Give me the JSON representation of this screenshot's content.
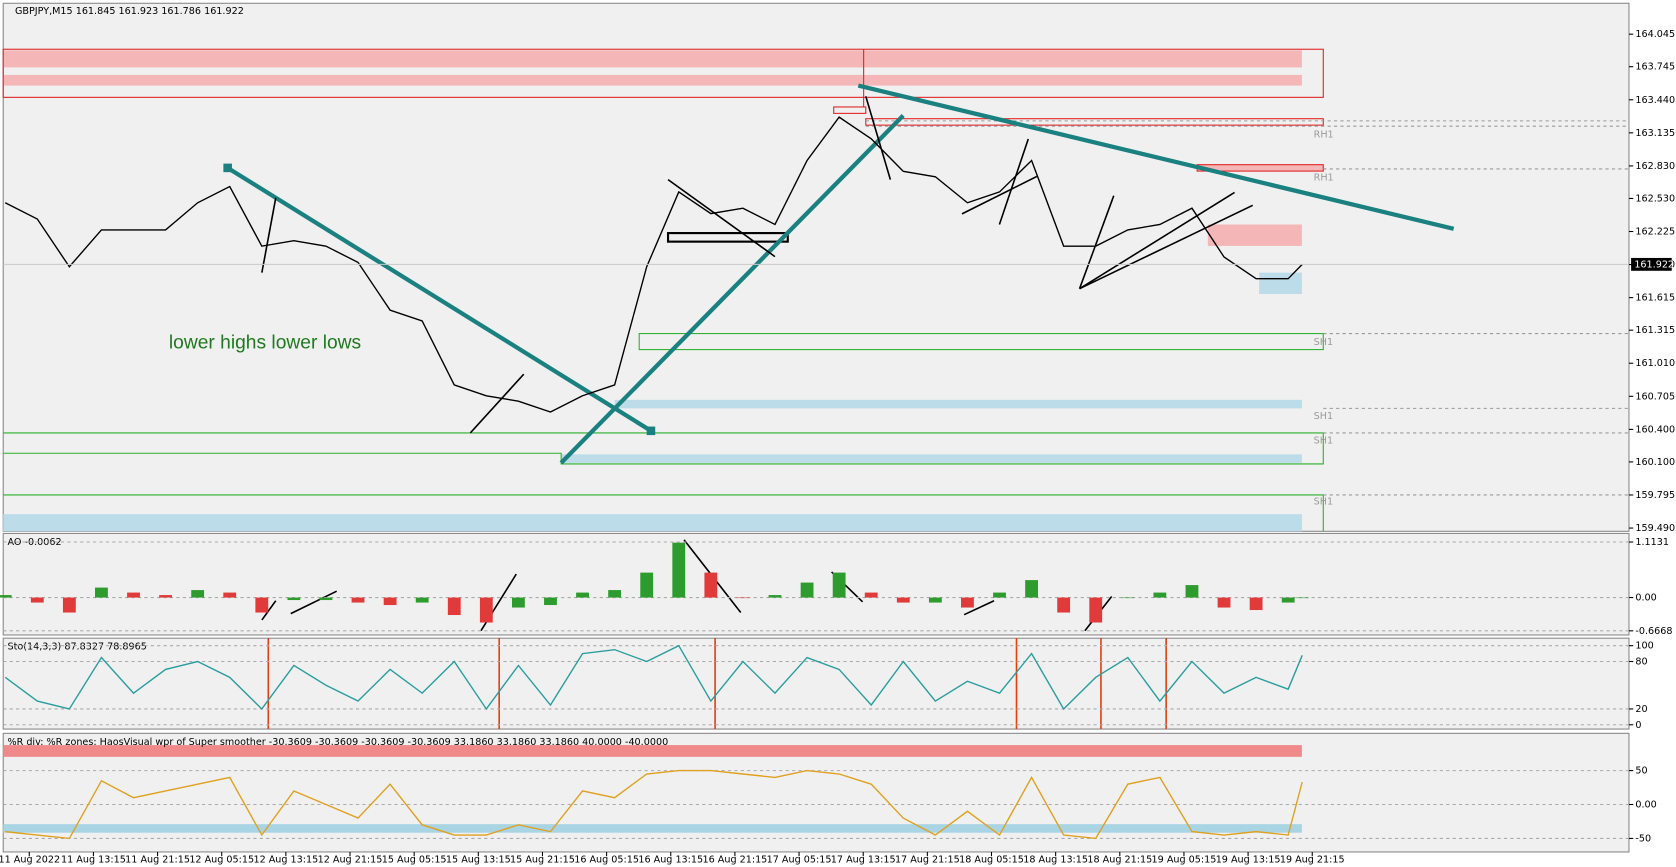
{
  "chart_data": [
    {
      "type": "line",
      "title": "GBPJPY,M15  161.845 161.923 161.786 161.922",
      "color": "#000000",
      "x": [
        1,
        17,
        33,
        49,
        65,
        81,
        97,
        113,
        129,
        145,
        161,
        177,
        193,
        209,
        225,
        241,
        257,
        273,
        289,
        305,
        321,
        337,
        353,
        369,
        385,
        401,
        417,
        433,
        449,
        465,
        481,
        497,
        513,
        529,
        545,
        561,
        577,
        593,
        609,
        625,
        641,
        648
      ],
      "values": [
        162.49,
        162.34,
        161.9,
        162.24,
        162.24,
        162.24,
        162.49,
        162.64,
        162.09,
        162.14,
        162.09,
        161.94,
        161.5,
        161.4,
        160.81,
        160.71,
        160.66,
        160.56,
        160.71,
        160.81,
        161.9,
        162.59,
        162.39,
        162.44,
        162.29,
        162.88,
        163.28,
        163.08,
        162.78,
        162.73,
        162.49,
        162.59,
        162.88,
        162.09,
        162.09,
        162.24,
        162.29,
        162.44,
        161.99,
        161.79,
        161.79,
        161.922
      ],
      "last_price": 161.922,
      "xlim": [
        0,
        811
      ],
      "xticks": [
        {
          "value": 13,
          "label": "11 Aug 2022"
        },
        {
          "value": 45,
          "label": "11 Aug 13:15"
        },
        {
          "value": 77,
          "label": "11 Aug 21:15"
        },
        {
          "value": 109,
          "label": "12 Aug 05:15"
        },
        {
          "value": 141,
          "label": "12 Aug 13:15"
        },
        {
          "value": 173,
          "label": "12 Aug 21:15"
        },
        {
          "value": 205,
          "label": "15 Aug 05:15"
        },
        {
          "value": 237,
          "label": "15 Aug 13:15"
        },
        {
          "value": 269,
          "label": "15 Aug 21:15"
        },
        {
          "value": 301,
          "label": "16 Aug 05:15"
        },
        {
          "value": 333,
          "label": "16 Aug 13:15"
        },
        {
          "value": 365,
          "label": "16 Aug 21:15"
        },
        {
          "value": 397,
          "label": "17 Aug 05:15"
        },
        {
          "value": 429,
          "label": "17 Aug 13:15"
        },
        {
          "value": 461,
          "label": "17 Aug 21:15"
        },
        {
          "value": 493,
          "label": "18 Aug 05:15"
        },
        {
          "value": 525,
          "label": "18 Aug 13:15"
        },
        {
          "value": 557,
          "label": "18 Aug 21:15"
        },
        {
          "value": 589,
          "label": "19 Aug 05:15"
        },
        {
          "value": 621,
          "label": "19 Aug 13:15"
        },
        {
          "value": 653,
          "label": "19 Aug 21:15"
        }
      ],
      "ylim": [
        159.46,
        164.33
      ],
      "yticks": [
        164.045,
        163.745,
        {
          "value": 163.44,
          "label": "163.440"
        },
        163.135,
        {
          "value": 162.83,
          "label": "162.830"
        },
        {
          "value": 162.53,
          "label": "162.530"
        },
        162.225,
        {
          "value": 161.92,
          "label": "161.920"
        },
        161.615,
        161.315,
        {
          "value": 161.01,
          "label": "161.010"
        },
        160.705,
        {
          "value": 160.4,
          "label": "160.400"
        },
        {
          "value": 160.1,
          "label": "160.100"
        },
        159.795,
        {
          "value": 159.49,
          "label": "159.490"
        }
      ],
      "annotations": [
        "lower highs lower lows",
        "RH1",
        "RH1",
        "SH1",
        "SH1",
        "SH1",
        "SH1"
      ]
    },
    {
      "type": "bar",
      "title": "AO -0.0062",
      "up_color": "#2e9b2e",
      "down_color": "#e03a3a",
      "values": [
        0.05,
        -0.1,
        -0.3,
        0.2,
        0.1,
        0.05,
        0.15,
        0.1,
        -0.3,
        -0.05,
        -0.05,
        -0.1,
        -0.15,
        -0.1,
        -0.35,
        -0.5,
        -0.2,
        -0.15,
        0.1,
        0.15,
        0.5,
        1.1,
        0.5,
        0.0,
        0.05,
        0.3,
        0.5,
        0.1,
        -0.1,
        -0.1,
        -0.2,
        0.1,
        0.35,
        -0.3,
        -0.5,
        0.0,
        0.1,
        0.25,
        -0.2,
        -0.25,
        -0.1,
        -0.0062
      ],
      "ylim": [
        -0.75,
        1.285
      ],
      "yticks": [
        1.1131,
        {
          "value": 0,
          "label": "0.00"
        },
        -0.6668
      ]
    },
    {
      "type": "line",
      "title": "Sto(14,3,3) 87.8327 78.8965",
      "color": "#2a9d9d",
      "values": [
        60,
        30,
        20,
        85,
        40,
        70,
        80,
        60,
        20,
        75,
        50,
        30,
        70,
        40,
        80,
        20,
        75,
        25,
        90,
        95,
        80,
        100,
        30,
        80,
        40,
        85,
        70,
        25,
        80,
        30,
        55,
        40,
        90,
        20,
        60,
        85,
        30,
        80,
        40,
        60,
        45,
        87.8327
      ],
      "ylim": [
        -5.4,
        109.5
      ],
      "yticks": [
        100,
        80,
        20,
        0
      ]
    },
    {
      "type": "line",
      "title": "%R div: %R zones:  HaosVisual wpr of Super smoother -30.3609 -30.3609 -30.3609 -30.3609 33.1860 33.1860 33.1860 40.0000 -40.0000",
      "color": "#e0a020",
      "values": [
        -40,
        -45,
        -50,
        35,
        10,
        20,
        30,
        40,
        -45,
        20,
        0,
        -20,
        30,
        -30,
        -45,
        -45,
        -30,
        -40,
        20,
        10,
        45,
        50,
        50,
        45,
        40,
        50,
        45,
        30,
        -20,
        -45,
        -10,
        -45,
        40,
        -45,
        -50,
        30,
        40,
        -40,
        -45,
        -40,
        -45,
        33.186
      ],
      "ylim": [
        -70,
        105
      ],
      "yticks": [
        50,
        {
          "value": 0,
          "label": "0.00"
        },
        -50
      ]
    }
  ]
}
